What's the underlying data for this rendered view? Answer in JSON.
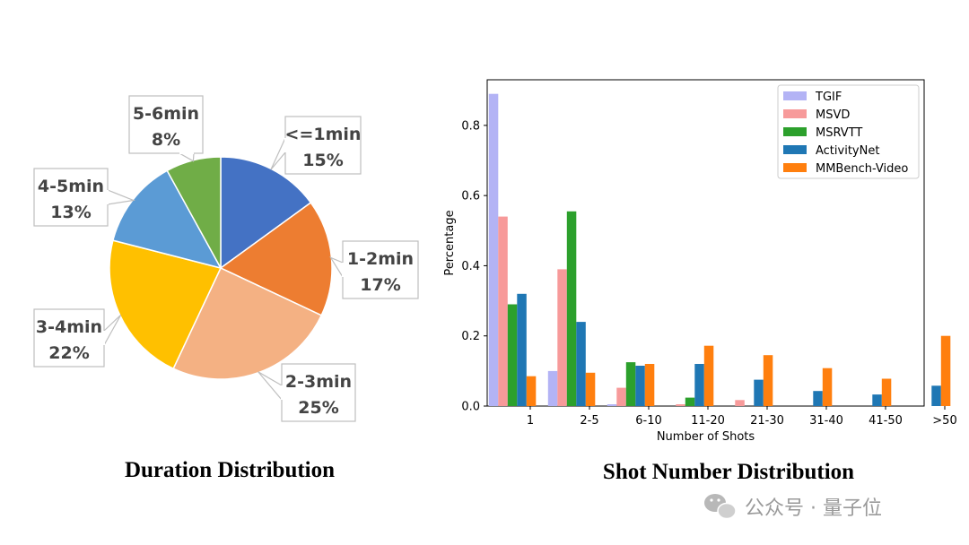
{
  "watermark": {
    "text": "公众号 · 量子位"
  },
  "chart_data": [
    {
      "type": "pie",
      "title": "Duration Distribution",
      "slices": [
        {
          "label": "<=1min",
          "value": 15,
          "display": "15%",
          "color": "#4472C4"
        },
        {
          "label": "1-2min",
          "value": 17,
          "display": "17%",
          "color": "#ED7D31"
        },
        {
          "label": "2-3min",
          "value": 25,
          "display": "25%",
          "color": "#F4B183"
        },
        {
          "label": "3-4min",
          "value": 22,
          "display": "22%",
          "color": "#FFC000"
        },
        {
          "label": "4-5min",
          "value": 13,
          "display": "13%",
          "color": "#5B9BD5"
        },
        {
          "label": "5-6min",
          "value": 8,
          "display": "8%",
          "color": "#70AD47"
        }
      ]
    },
    {
      "type": "bar",
      "title": "Shot Number Distribution",
      "xlabel": "Number of Shots",
      "ylabel": "Percentage",
      "ylim": [
        0,
        0.93
      ],
      "yticks": [
        "0.0",
        "0.2",
        "0.4",
        "0.6",
        "0.8"
      ],
      "legend_position": "top-right",
      "categories": [
        "1",
        "2-5",
        "6-10",
        "11-20",
        "21-30",
        "31-40",
        "41-50",
        ">50"
      ],
      "series": [
        {
          "name": "TGIF",
          "color": "#B3B3F5",
          "values": [
            0.89,
            0.1,
            0.005,
            0,
            0,
            0,
            0,
            0
          ]
        },
        {
          "name": "MSVD",
          "color": "#F79A9A",
          "values": [
            0.54,
            0.39,
            0.052,
            0.005,
            0.017,
            0,
            0,
            0
          ]
        },
        {
          "name": "MSRVTT",
          "color": "#2CA02C",
          "values": [
            0.29,
            0.555,
            0.125,
            0.024,
            0,
            0,
            0,
            0
          ]
        },
        {
          "name": "ActivityNet",
          "color": "#1F77B4",
          "values": [
            0.32,
            0.24,
            0.115,
            0.12,
            0.075,
            0.043,
            0.033,
            0.058
          ]
        },
        {
          "name": "MMBench-Video",
          "color": "#FF7F0E",
          "values": [
            0.085,
            0.095,
            0.12,
            0.172,
            0.145,
            0.108,
            0.078,
            0.2
          ]
        }
      ]
    }
  ]
}
